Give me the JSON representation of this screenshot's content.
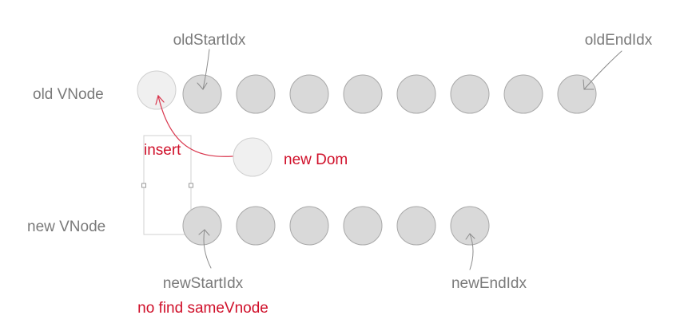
{
  "labels": {
    "old_start": "oldStartIdx",
    "old_end": "oldEndIdx",
    "old_row": "old VNode",
    "insert": "insert",
    "new_dom": "new Dom",
    "new_row": "new VNode",
    "new_start": "newStartIdx",
    "new_end": "newEndIdx",
    "note": "no find sameVnode"
  },
  "old_vnode_count": 9,
  "new_vnode_count": 6,
  "colors": {
    "text_gray": "#7a7a7a",
    "text_red": "#d0102a",
    "node_fill": "#d9d9d9",
    "node_stroke": "#a8a8a8",
    "ghost_fill": "#f0f0f0",
    "ghost_stroke": "#cfcfcf",
    "arrow_gray": "#8c8c8c",
    "arrow_red": "#d9364d",
    "frame": "#d0d0d0"
  }
}
